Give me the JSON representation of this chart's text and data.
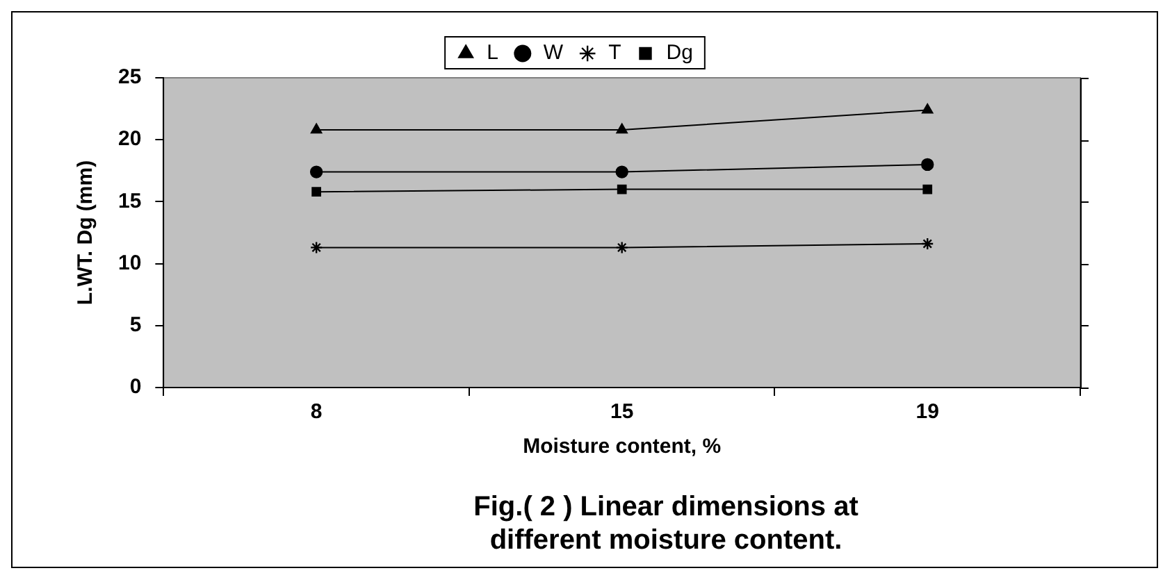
{
  "chart_data": {
    "type": "line",
    "xlabel": "Moisture content, %",
    "ylabel": "L.WT. Dg (mm)",
    "categories": [
      "8",
      "15",
      "19"
    ],
    "series": [
      {
        "name": "L",
        "color": "#000000",
        "marker": "triangle",
        "values": [
          20.8,
          20.8,
          22.4
        ]
      },
      {
        "name": "W",
        "color": "#000000",
        "marker": "circle",
        "values": [
          17.4,
          17.4,
          18.0
        ]
      },
      {
        "name": "T",
        "color": "#000000",
        "marker": "cross",
        "values": [
          11.3,
          11.3,
          11.6
        ]
      },
      {
        "name": "Dg",
        "color": "#000000",
        "marker": "square",
        "values": [
          15.8,
          16.0,
          16.0
        ]
      }
    ],
    "ylim": [
      0,
      25
    ],
    "yticks": [
      0,
      5,
      10,
      15,
      20,
      25
    ],
    "grid": false,
    "legend": "top",
    "line_style": "solid",
    "annotations": [
      "Fig.( 2 ) Linear dimensions at different moisture content."
    ]
  }
}
